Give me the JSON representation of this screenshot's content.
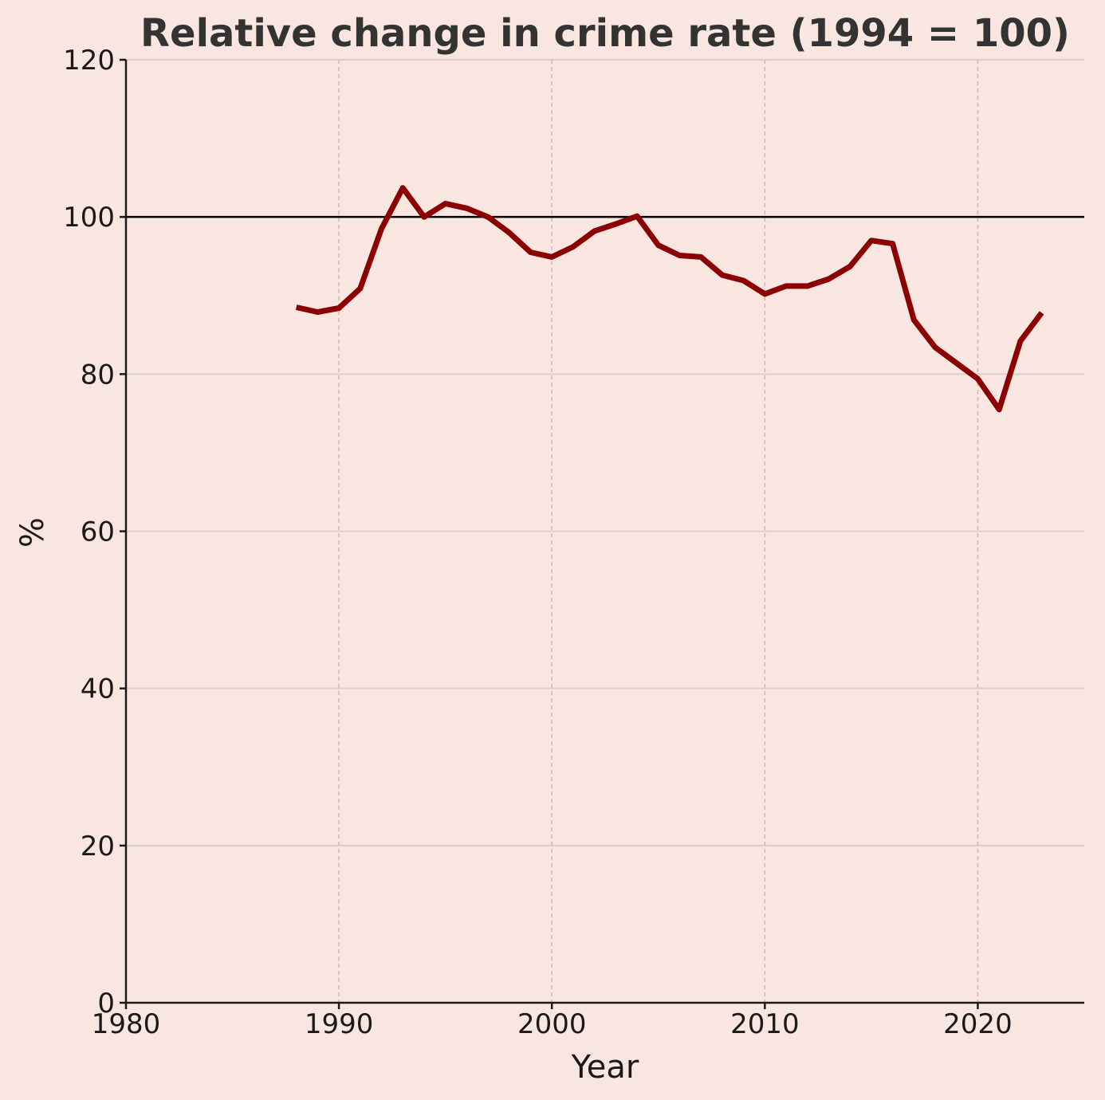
{
  "chart_data": {
    "type": "line",
    "title": "Relative change in crime rate (1994 = 100)",
    "xlabel": "Year",
    "ylabel": "%",
    "xlim": [
      1980,
      2025
    ],
    "ylim": [
      0,
      120
    ],
    "x_ticks": [
      1980,
      1990,
      2000,
      2010,
      2020
    ],
    "y_ticks": [
      0,
      20,
      40,
      60,
      80,
      100,
      120
    ],
    "grid": {
      "x": "dashed",
      "y": "solid"
    },
    "reference_line": {
      "y": 100
    },
    "series": [
      {
        "color": "#8b0000",
        "x": [
          1988,
          1989,
          1990,
          1991,
          1992,
          1993,
          1994,
          1995,
          1996,
          1997,
          1998,
          1999,
          2000,
          2001,
          2002,
          2003,
          2004,
          2005,
          2006,
          2007,
          2008,
          2009,
          2010,
          2011,
          2012,
          2013,
          2014,
          2015,
          2016,
          2017,
          2018,
          2019,
          2020,
          2021,
          2022,
          2023
        ],
        "y": [
          88.5,
          87.9,
          88.4,
          90.9,
          98.5,
          103.7,
          100.0,
          101.7,
          101.1,
          100.0,
          98.0,
          95.5,
          94.9,
          96.2,
          98.2,
          99.1,
          100.1,
          96.4,
          95.1,
          94.9,
          92.6,
          91.9,
          90.2,
          91.2,
          91.2,
          92.1,
          93.7,
          97.0,
          96.6,
          86.9,
          83.4,
          81.4,
          79.4,
          75.5,
          84.2,
          87.8
        ]
      }
    ],
    "colors": {
      "background": "#fae6e0",
      "line": "#8b0000",
      "reference": "#000000",
      "grid": "#d9d0cc",
      "axis": "#1a1a1a",
      "title": "#333333"
    }
  }
}
